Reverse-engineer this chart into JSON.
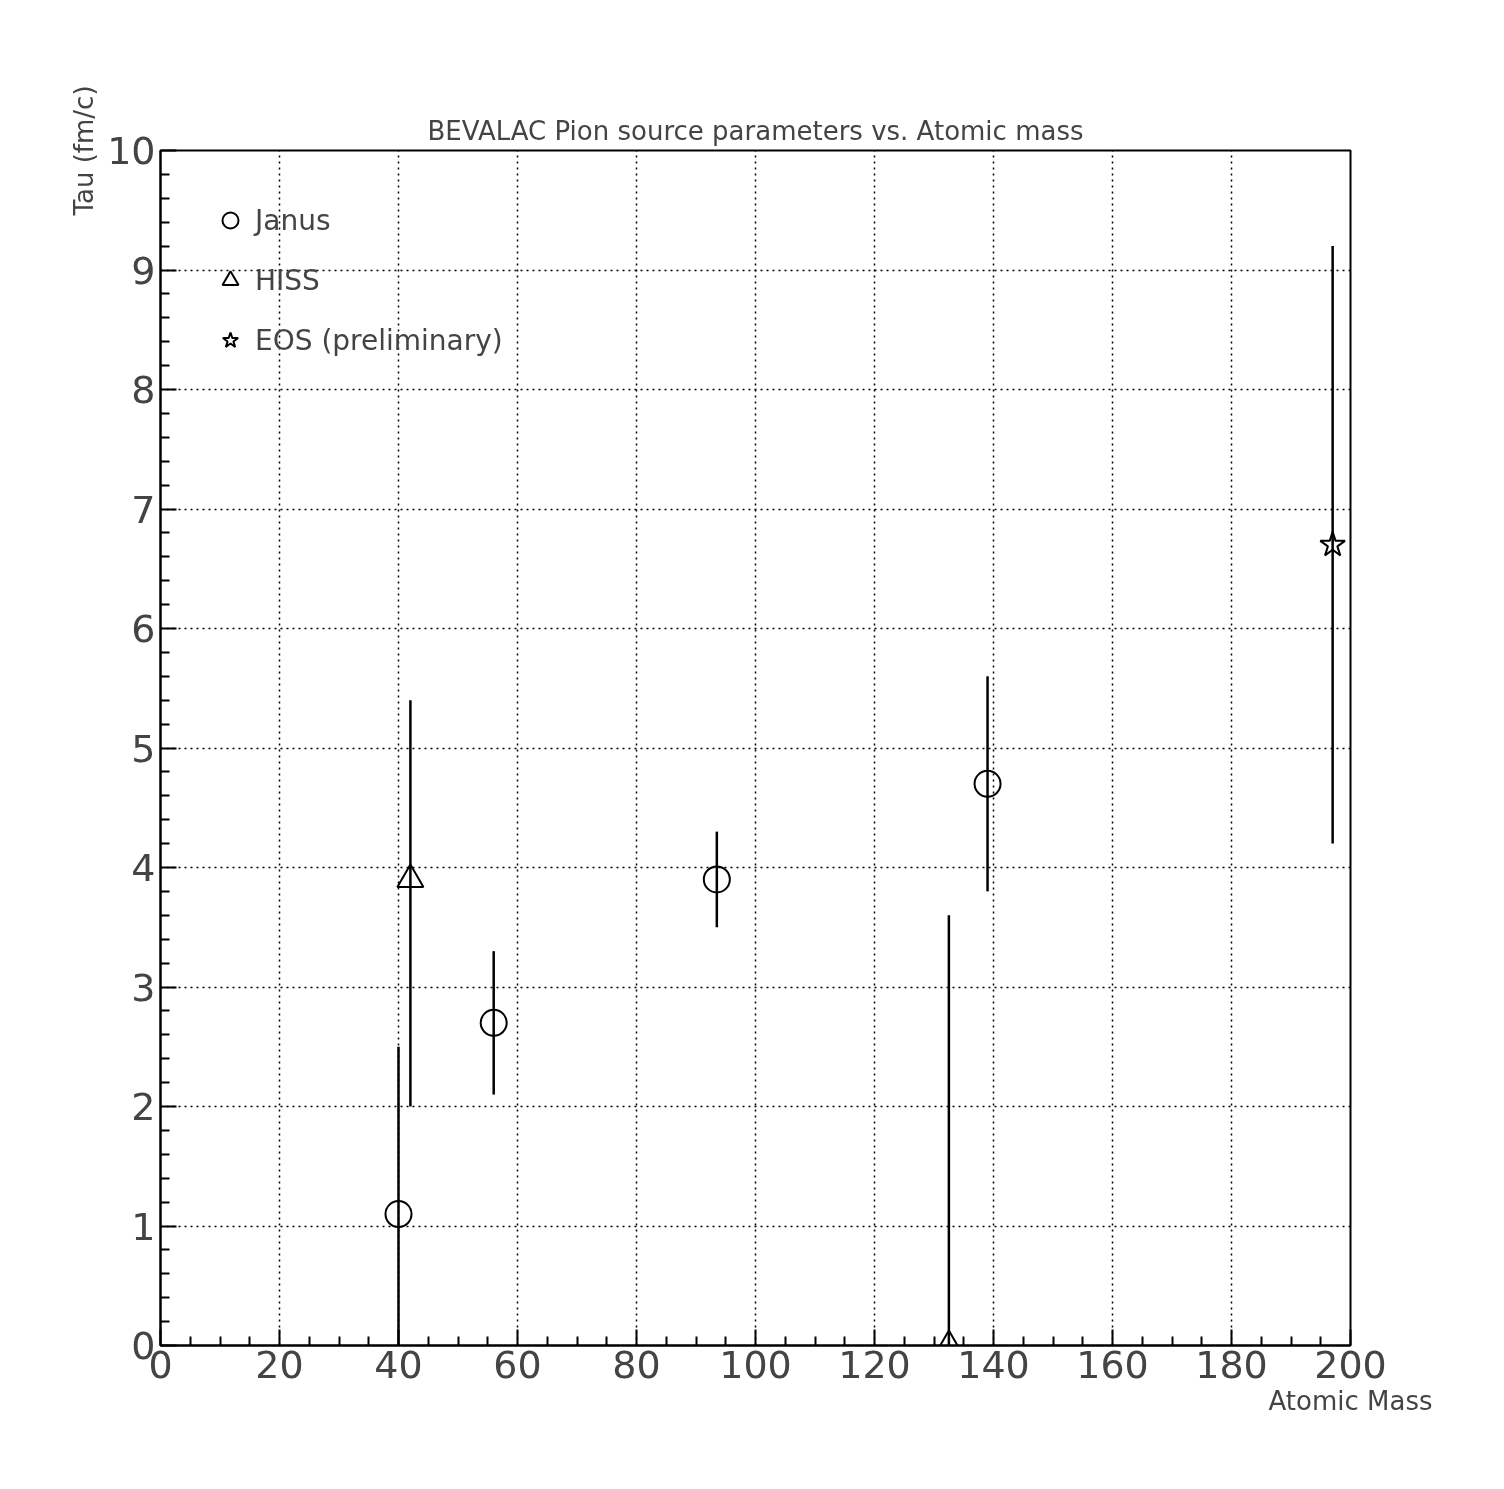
{
  "chart_data": {
    "type": "scatter",
    "title": "BEVALAC Pion source parameters vs. Atomic mass",
    "xlabel": "Atomic Mass",
    "ylabel": "Tau (fm/c)",
    "xlim": [
      0,
      200
    ],
    "ylim": [
      0,
      10
    ],
    "xticks": [
      0,
      {
        "value": 5,
        "label": null
      },
      {
        "value": 10,
        "label": null
      },
      {
        "value": 15,
        "label": null
      },
      20,
      {
        "value": 25,
        "label": null
      },
      {
        "value": 30,
        "label": null
      },
      {
        "value": 35,
        "label": null
      },
      40,
      {
        "value": 45,
        "label": null
      },
      {
        "value": 50,
        "label": null
      },
      {
        "value": 55,
        "label": null
      },
      60,
      {
        "value": 65,
        "label": null
      },
      {
        "value": 70,
        "label": null
      },
      {
        "value": 75,
        "label": null
      },
      80,
      {
        "value": 85,
        "label": null
      },
      {
        "value": 90,
        "label": null
      },
      {
        "value": 95,
        "label": null
      },
      100,
      {
        "value": 105,
        "label": null
      },
      {
        "value": 110,
        "label": null
      },
      {
        "value": 115,
        "label": null
      },
      120,
      {
        "value": 125,
        "label": null
      },
      {
        "value": 130,
        "label": null
      },
      {
        "value": 135,
        "label": null
      },
      140,
      {
        "value": 145,
        "label": null
      },
      {
        "value": 150,
        "label": null
      },
      {
        "value": 155,
        "label": null
      },
      160,
      {
        "value": 165,
        "label": null
      },
      {
        "value": 170,
        "label": null
      },
      {
        "value": 175,
        "label": null
      },
      180,
      {
        "value": 185,
        "label": null
      },
      {
        "value": 190,
        "label": null
      },
      {
        "value": 195,
        "label": null
      },
      200
    ],
    "yticks": [
      0,
      {
        "value": 0.2,
        "label": null
      },
      {
        "value": 0.4,
        "label": null
      },
      {
        "value": 0.6,
        "label": null
      },
      {
        "value": 0.8,
        "label": null
      },
      1,
      {
        "value": 1.2,
        "label": null
      },
      {
        "value": 1.4,
        "label": null
      },
      {
        "value": 1.6,
        "label": null
      },
      {
        "value": 1.8,
        "label": null
      },
      2,
      {
        "value": 2.2,
        "label": null
      },
      {
        "value": 2.4,
        "label": null
      },
      {
        "value": 2.6,
        "label": null
      },
      {
        "value": 2.8,
        "label": null
      },
      3,
      {
        "value": 3.2,
        "label": null
      },
      {
        "value": 3.4,
        "label": null
      },
      {
        "value": 3.6,
        "label": null
      },
      {
        "value": 3.8,
        "label": null
      },
      4,
      {
        "value": 4.2,
        "label": null
      },
      {
        "value": 4.4,
        "label": null
      },
      {
        "value": 4.6,
        "label": null
      },
      {
        "value": 4.8,
        "label": null
      },
      5,
      {
        "value": 5.2,
        "label": null
      },
      {
        "value": 5.4,
        "label": null
      },
      {
        "value": 5.6,
        "label": null
      },
      {
        "value": 5.8,
        "label": null
      },
      6,
      {
        "value": 6.2,
        "label": null
      },
      {
        "value": 6.4,
        "label": null
      },
      {
        "value": 6.6,
        "label": null
      },
      {
        "value": 6.8,
        "label": null
      },
      7,
      {
        "value": 7.2,
        "label": null
      },
      {
        "value": 7.4,
        "label": null
      },
      {
        "value": 7.6,
        "label": null
      },
      {
        "value": 7.8,
        "label": null
      },
      8,
      {
        "value": 8.2,
        "label": null
      },
      {
        "value": 8.4,
        "label": null
      },
      {
        "value": 8.6,
        "label": null
      },
      {
        "value": 8.8,
        "label": null
      },
      9,
      {
        "value": 9.2,
        "label": null
      },
      {
        "value": 9.4,
        "label": null
      },
      {
        "value": 9.6,
        "label": null
      },
      {
        "value": 9.8,
        "label": null
      },
      10
    ],
    "grid": true,
    "legend": "top left",
    "series": [
      {
        "name": "Janus",
        "color": "#000000",
        "marker": "circle",
        "x": [
          40,
          56,
          93.5,
          139
        ],
        "values": [
          1.1,
          2.7,
          3.9,
          4.7
        ],
        "errors": [
          [
            0,
            2.5
          ],
          [
            2.1,
            3.3
          ],
          [
            3.5,
            4.3
          ],
          [
            3.8,
            5.6
          ]
        ]
      },
      {
        "name": "HISS",
        "color": "#000000",
        "marker": "triangle",
        "x": [
          42,
          132.5
        ],
        "values": [
          3.9,
          0
        ],
        "errors": [
          [
            2.0,
            5.4
          ],
          [
            0,
            3.6
          ]
        ]
      },
      {
        "name": "EOS (preliminary)",
        "color": "#000000",
        "marker": "star",
        "x": [
          197
        ],
        "values": [
          6.7
        ],
        "errors": [
          [
            4.2,
            9.2
          ]
        ]
      }
    ]
  }
}
